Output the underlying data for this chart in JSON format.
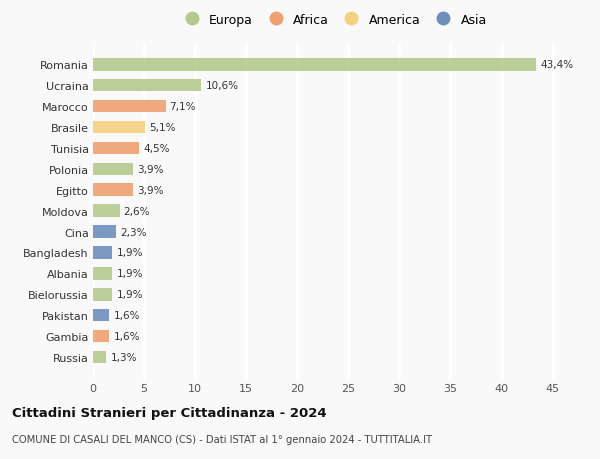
{
  "categories": [
    "Romania",
    "Ucraina",
    "Marocco",
    "Brasile",
    "Tunisia",
    "Polonia",
    "Egitto",
    "Moldova",
    "Cina",
    "Bangladesh",
    "Albania",
    "Bielorussia",
    "Pakistan",
    "Gambia",
    "Russia"
  ],
  "values": [
    43.4,
    10.6,
    7.1,
    5.1,
    4.5,
    3.9,
    3.9,
    2.6,
    2.3,
    1.9,
    1.9,
    1.9,
    1.6,
    1.6,
    1.3
  ],
  "labels": [
    "43,4%",
    "10,6%",
    "7,1%",
    "5,1%",
    "4,5%",
    "3,9%",
    "3,9%",
    "2,6%",
    "2,3%",
    "1,9%",
    "1,9%",
    "1,9%",
    "1,6%",
    "1,6%",
    "1,3%"
  ],
  "continents": [
    "Europa",
    "Europa",
    "Africa",
    "America",
    "Africa",
    "Europa",
    "Africa",
    "Europa",
    "Asia",
    "Asia",
    "Europa",
    "Europa",
    "Asia",
    "Africa",
    "Europa"
  ],
  "continent_colors": {
    "Europa": "#b5c98e",
    "Africa": "#f0a070",
    "America": "#f5d080",
    "Asia": "#6e8fbb"
  },
  "legend_items": [
    "Europa",
    "Africa",
    "America",
    "Asia"
  ],
  "legend_colors": [
    "#b5c98e",
    "#f0a070",
    "#f5d080",
    "#6e8fbb"
  ],
  "xlim": [
    0,
    47
  ],
  "xticks": [
    0,
    5,
    10,
    15,
    20,
    25,
    30,
    35,
    40,
    45
  ],
  "title_bold": "Cittadini Stranieri per Cittadinanza - 2024",
  "subtitle": "COMUNE DI CASALI DEL MANCO (CS) - Dati ISTAT al 1° gennaio 2024 - TUTTITALIA.IT",
  "background_color": "#f9f9f9",
  "grid_color": "#ffffff",
  "bar_height": 0.6
}
